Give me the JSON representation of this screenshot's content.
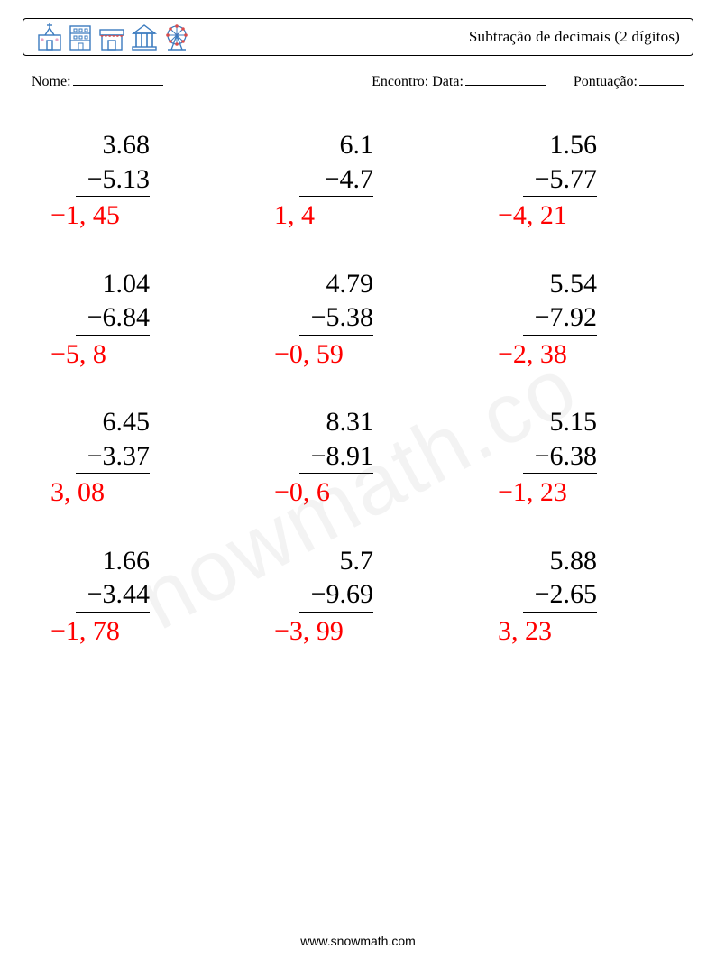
{
  "header": {
    "title": "Subtração de decimais (2 dígitos)",
    "icon_colors": {
      "stroke": "#3b7bbf",
      "pink": "#e8a0c4",
      "red": "#d84c4c"
    }
  },
  "meta": {
    "name_label": "Nome:",
    "encounter_label": "Encontro: Data:",
    "score_label": "Pontuação:",
    "blank_widths": {
      "name": 100,
      "date": 90,
      "score": 50
    }
  },
  "problems": [
    {
      "a": "3.68",
      "b": "5.13",
      "ans": "−1, 45"
    },
    {
      "a": "6.1",
      "b": "4.7",
      "ans": "1, 4"
    },
    {
      "a": "1.56",
      "b": "5.77",
      "ans": "−4, 21"
    },
    {
      "a": "1.04",
      "b": "6.84",
      "ans": "−5, 8"
    },
    {
      "a": "4.79",
      "b": "5.38",
      "ans": "−0, 59"
    },
    {
      "a": "5.54",
      "b": "7.92",
      "ans": "−2, 38"
    },
    {
      "a": "6.45",
      "b": "3.37",
      "ans": "3, 08"
    },
    {
      "a": "8.31",
      "b": "8.91",
      "ans": "−0, 6"
    },
    {
      "a": "5.15",
      "b": "6.38",
      "ans": "−1, 23"
    },
    {
      "a": "1.66",
      "b": "3.44",
      "ans": "−1, 78"
    },
    {
      "a": "5.7",
      "b": "9.69",
      "ans": "−3, 99"
    },
    {
      "a": "5.88",
      "b": "2.65",
      "ans": "3, 23"
    }
  ],
  "style": {
    "problem_fontsize": 30,
    "answer_color": "#ff0000",
    "text_color": "#000000",
    "background": "#ffffff",
    "grid": {
      "cols": 3,
      "rows": 4,
      "col_gap": 30,
      "row_gap": 38
    }
  },
  "watermark": "nowmath.co",
  "footer": "www.snowmath.com"
}
